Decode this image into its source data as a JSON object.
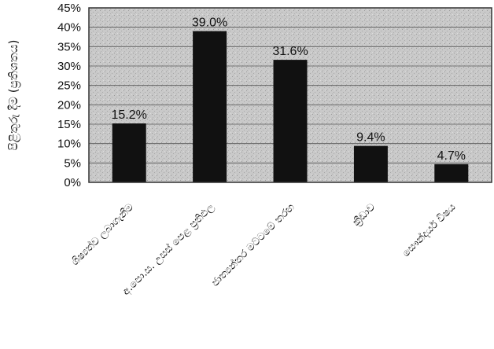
{
  "chart_data": {
    "type": "bar",
    "categories": [
      "ශිෂ්‍යත්ව ලබාගැනීම",
      "අ.පො.ස. උසස් පෙළ ප්‍රතිඵල",
      "ජාත්‍යන්තර මට්ටමේ තරඟ",
      "ක්‍රීඩාව",
      "සෞන්දර්ය විෂය"
    ],
    "values": [
      15.2,
      39.0,
      31.6,
      9.4,
      4.7
    ],
    "data_labels": [
      "15.2%",
      "39.0%",
      "31.6%",
      "9.4%",
      "4.7%"
    ],
    "ylabel": "පිළිතුරු දීම (ප්‍රතිශතය)",
    "ylim": [
      0,
      45
    ],
    "yticks": [
      "0%",
      "5%",
      "10%",
      "15%",
      "20%",
      "25%",
      "30%",
      "35%",
      "40%",
      "45%"
    ],
    "grid": true,
    "legend": "none",
    "colors": {
      "bar": "#111111",
      "plot_bg": "#c8c8c8",
      "grid": "#555555",
      "frame": "#333333"
    }
  }
}
